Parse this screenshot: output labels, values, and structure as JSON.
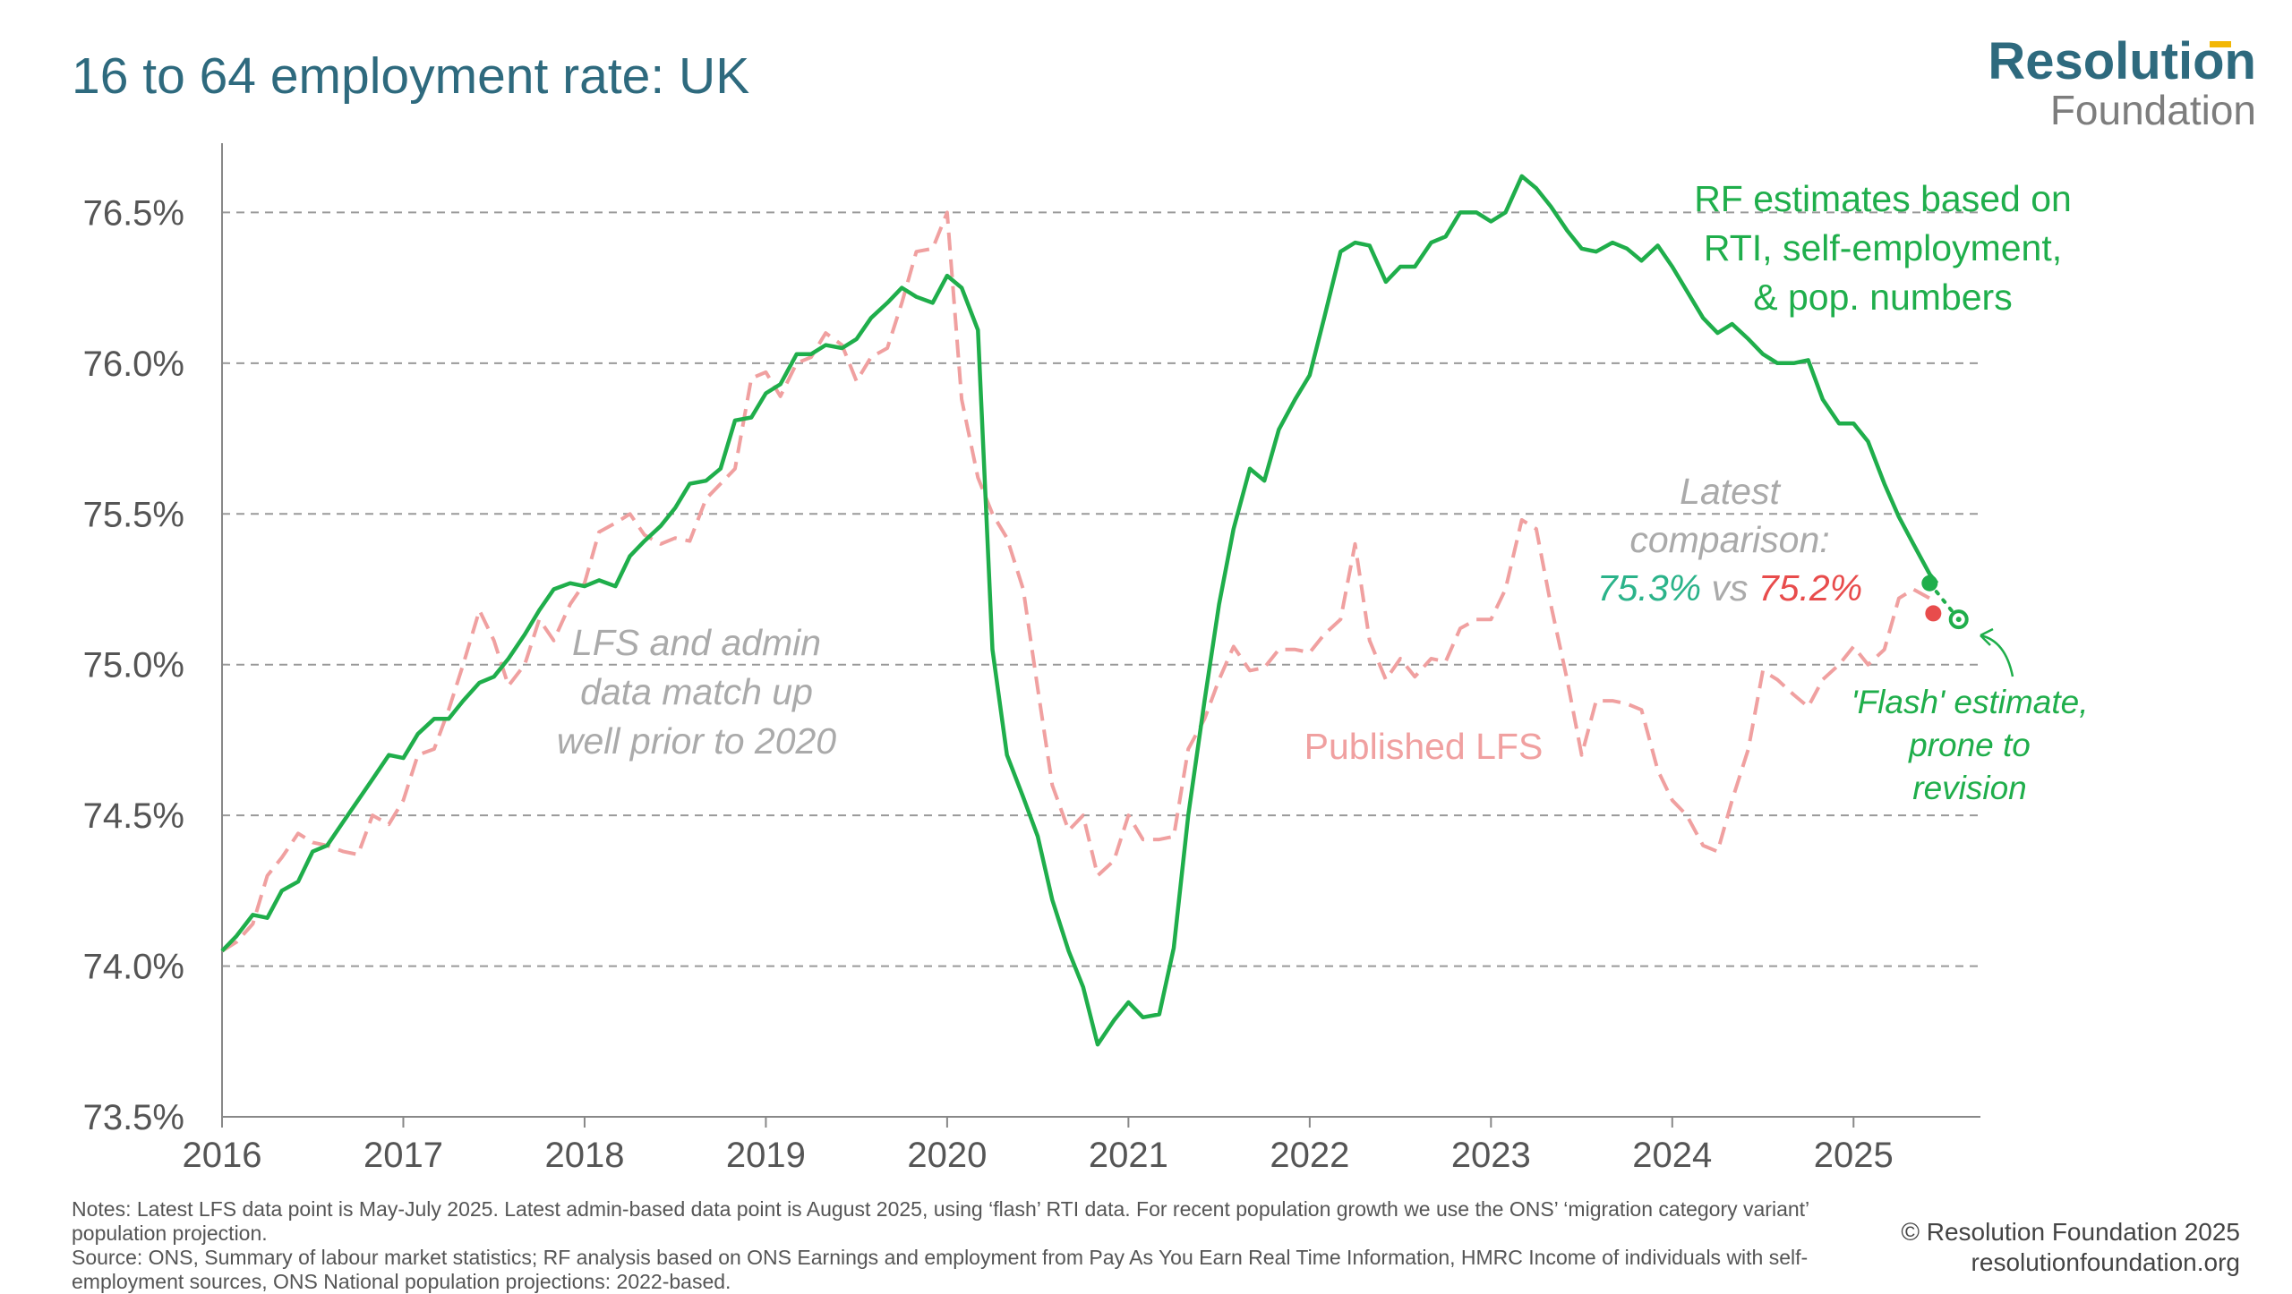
{
  "title": "16 to 64 employment rate: UK",
  "logo": {
    "line1": "Resolution",
    "line2": "Foundation"
  },
  "colors": {
    "green": "#1fae4b",
    "pink": "#f0a0a0",
    "red": "#e84c4c",
    "teal": "#2bb38a",
    "gray": "#aaaaaa",
    "title": "#2e6a7e"
  },
  "chart_data": {
    "type": "line",
    "ylim": [
      73.5,
      76.7
    ],
    "yticks": [
      73.5,
      74.0,
      74.5,
      75.0,
      75.5,
      76.0,
      76.5
    ],
    "ytick_labels": [
      "73.5%",
      "74.0%",
      "74.5%",
      "75.0%",
      "75.5%",
      "76.0%",
      "76.5%"
    ],
    "xlim": [
      2016,
      2025.7
    ],
    "xticks": [
      2016,
      2017,
      2018,
      2019,
      2020,
      2021,
      2022,
      2023,
      2024,
      2025
    ],
    "xtick_labels": [
      "2016",
      "2017",
      "2018",
      "2019",
      "2020",
      "2021",
      "2022",
      "2023",
      "2024",
      "2025"
    ],
    "grid": "horizontal dashed",
    "series": [
      {
        "name": "RF estimates based on RTI, self-employment, & pop. numbers",
        "style": "solid",
        "points": [
          [
            2016.0,
            74.05
          ],
          [
            2016.08,
            74.1
          ],
          [
            2016.17,
            74.17
          ],
          [
            2016.25,
            74.16
          ],
          [
            2016.33,
            74.25
          ],
          [
            2016.42,
            74.28
          ],
          [
            2016.5,
            74.38
          ],
          [
            2016.58,
            74.4
          ],
          [
            2016.67,
            74.48
          ],
          [
            2016.75,
            74.55
          ],
          [
            2016.83,
            74.62
          ],
          [
            2016.92,
            74.7
          ],
          [
            2017.0,
            74.69
          ],
          [
            2017.08,
            74.77
          ],
          [
            2017.17,
            74.82
          ],
          [
            2017.25,
            74.82
          ],
          [
            2017.33,
            74.88
          ],
          [
            2017.42,
            74.94
          ],
          [
            2017.5,
            74.96
          ],
          [
            2017.58,
            75.02
          ],
          [
            2017.67,
            75.1
          ],
          [
            2017.75,
            75.18
          ],
          [
            2017.83,
            75.25
          ],
          [
            2017.92,
            75.27
          ],
          [
            2018.0,
            75.26
          ],
          [
            2018.08,
            75.28
          ],
          [
            2018.17,
            75.26
          ],
          [
            2018.25,
            75.36
          ],
          [
            2018.33,
            75.41
          ],
          [
            2018.42,
            75.46
          ],
          [
            2018.5,
            75.52
          ],
          [
            2018.58,
            75.6
          ],
          [
            2018.67,
            75.61
          ],
          [
            2018.75,
            75.65
          ],
          [
            2018.83,
            75.81
          ],
          [
            2018.92,
            75.82
          ],
          [
            2019.0,
            75.9
          ],
          [
            2019.08,
            75.93
          ],
          [
            2019.17,
            76.03
          ],
          [
            2019.25,
            76.03
          ],
          [
            2019.33,
            76.06
          ],
          [
            2019.42,
            76.05
          ],
          [
            2019.5,
            76.08
          ],
          [
            2019.58,
            76.15
          ],
          [
            2019.67,
            76.2
          ],
          [
            2019.75,
            76.25
          ],
          [
            2019.83,
            76.22
          ],
          [
            2019.92,
            76.2
          ],
          [
            2020.0,
            76.29
          ],
          [
            2020.08,
            76.25
          ],
          [
            2020.17,
            76.11
          ],
          [
            2020.25,
            75.05
          ],
          [
            2020.33,
            74.7
          ],
          [
            2020.42,
            74.56
          ],
          [
            2020.5,
            74.43
          ],
          [
            2020.58,
            74.22
          ],
          [
            2020.67,
            74.05
          ],
          [
            2020.75,
            73.93
          ],
          [
            2020.83,
            73.74
          ],
          [
            2020.92,
            73.82
          ],
          [
            2021.0,
            73.88
          ],
          [
            2021.08,
            73.83
          ],
          [
            2021.17,
            73.84
          ],
          [
            2021.25,
            74.06
          ],
          [
            2021.33,
            74.5
          ],
          [
            2021.42,
            74.88
          ],
          [
            2021.5,
            75.2
          ],
          [
            2021.58,
            75.45
          ],
          [
            2021.67,
            75.65
          ],
          [
            2021.75,
            75.61
          ],
          [
            2021.83,
            75.78
          ],
          [
            2021.92,
            75.88
          ],
          [
            2022.0,
            75.96
          ],
          [
            2022.08,
            76.15
          ],
          [
            2022.17,
            76.37
          ],
          [
            2022.25,
            76.4
          ],
          [
            2022.33,
            76.39
          ],
          [
            2022.42,
            76.27
          ],
          [
            2022.5,
            76.32
          ],
          [
            2022.58,
            76.32
          ],
          [
            2022.67,
            76.4
          ],
          [
            2022.75,
            76.42
          ],
          [
            2022.83,
            76.5
          ],
          [
            2022.92,
            76.5
          ],
          [
            2023.0,
            76.47
          ],
          [
            2023.08,
            76.5
          ],
          [
            2023.17,
            76.62
          ],
          [
            2023.25,
            76.58
          ],
          [
            2023.33,
            76.52
          ],
          [
            2023.42,
            76.44
          ],
          [
            2023.5,
            76.38
          ],
          [
            2023.58,
            76.37
          ],
          [
            2023.67,
            76.4
          ],
          [
            2023.75,
            76.38
          ],
          [
            2023.83,
            76.34
          ],
          [
            2023.92,
            76.39
          ],
          [
            2024.0,
            76.32
          ],
          [
            2024.08,
            76.24
          ],
          [
            2024.17,
            76.15
          ],
          [
            2024.25,
            76.1
          ],
          [
            2024.33,
            76.13
          ],
          [
            2024.42,
            76.08
          ],
          [
            2024.5,
            76.03
          ],
          [
            2024.58,
            76.0
          ],
          [
            2024.67,
            76.0
          ],
          [
            2024.75,
            76.01
          ],
          [
            2024.83,
            75.88
          ],
          [
            2024.92,
            75.8
          ],
          [
            2025.0,
            75.8
          ],
          [
            2025.08,
            75.74
          ],
          [
            2025.17,
            75.6
          ],
          [
            2025.25,
            75.49
          ],
          [
            2025.33,
            75.4
          ],
          [
            2025.42,
            75.3
          ],
          [
            2025.46,
            75.27
          ]
        ]
      },
      {
        "name": "Published LFS",
        "style": "dashed",
        "points": [
          [
            2016.0,
            74.05
          ],
          [
            2016.08,
            74.08
          ],
          [
            2016.17,
            74.14
          ],
          [
            2016.25,
            74.3
          ],
          [
            2016.33,
            74.36
          ],
          [
            2016.42,
            74.44
          ],
          [
            2016.5,
            74.41
          ],
          [
            2016.58,
            74.4
          ],
          [
            2016.67,
            74.38
          ],
          [
            2016.75,
            74.37
          ],
          [
            2016.83,
            74.5
          ],
          [
            2016.92,
            74.47
          ],
          [
            2017.0,
            74.55
          ],
          [
            2017.08,
            74.7
          ],
          [
            2017.17,
            74.72
          ],
          [
            2017.25,
            74.85
          ],
          [
            2017.33,
            75.0
          ],
          [
            2017.42,
            75.18
          ],
          [
            2017.5,
            75.08
          ],
          [
            2017.58,
            74.93
          ],
          [
            2017.67,
            75.0
          ],
          [
            2017.75,
            75.15
          ],
          [
            2017.83,
            75.08
          ],
          [
            2017.92,
            75.2
          ],
          [
            2018.0,
            75.27
          ],
          [
            2018.08,
            75.44
          ],
          [
            2018.17,
            75.47
          ],
          [
            2018.25,
            75.5
          ],
          [
            2018.33,
            75.43
          ],
          [
            2018.42,
            75.4
          ],
          [
            2018.5,
            75.42
          ],
          [
            2018.58,
            75.41
          ],
          [
            2018.67,
            75.55
          ],
          [
            2018.75,
            75.6
          ],
          [
            2018.83,
            75.65
          ],
          [
            2018.92,
            75.95
          ],
          [
            2019.0,
            75.97
          ],
          [
            2019.08,
            75.89
          ],
          [
            2019.17,
            76.0
          ],
          [
            2019.25,
            76.02
          ],
          [
            2019.33,
            76.1
          ],
          [
            2019.42,
            76.06
          ],
          [
            2019.5,
            75.94
          ],
          [
            2019.58,
            76.02
          ],
          [
            2019.67,
            76.05
          ],
          [
            2019.75,
            76.2
          ],
          [
            2019.83,
            76.37
          ],
          [
            2019.92,
            76.38
          ],
          [
            2020.0,
            76.5
          ],
          [
            2020.08,
            75.88
          ],
          [
            2020.17,
            75.62
          ],
          [
            2020.25,
            75.5
          ],
          [
            2020.33,
            75.42
          ],
          [
            2020.42,
            75.25
          ],
          [
            2020.5,
            74.92
          ],
          [
            2020.58,
            74.6
          ],
          [
            2020.67,
            74.45
          ],
          [
            2020.75,
            74.5
          ],
          [
            2020.83,
            74.3
          ],
          [
            2020.92,
            74.35
          ],
          [
            2021.0,
            74.5
          ],
          [
            2021.08,
            74.42
          ],
          [
            2021.17,
            74.42
          ],
          [
            2021.25,
            74.43
          ],
          [
            2021.33,
            74.72
          ],
          [
            2021.42,
            74.82
          ],
          [
            2021.5,
            74.95
          ],
          [
            2021.58,
            75.06
          ],
          [
            2021.67,
            74.98
          ],
          [
            2021.75,
            74.99
          ],
          [
            2021.83,
            75.05
          ],
          [
            2021.92,
            75.05
          ],
          [
            2022.0,
            75.04
          ],
          [
            2022.08,
            75.1
          ],
          [
            2022.17,
            75.15
          ],
          [
            2022.25,
            75.4
          ],
          [
            2022.33,
            75.08
          ],
          [
            2022.42,
            74.95
          ],
          [
            2022.5,
            75.02
          ],
          [
            2022.58,
            74.96
          ],
          [
            2022.67,
            75.02
          ],
          [
            2022.75,
            75.01
          ],
          [
            2022.83,
            75.12
          ],
          [
            2022.92,
            75.15
          ],
          [
            2023.0,
            75.15
          ],
          [
            2023.08,
            75.25
          ],
          [
            2023.17,
            75.48
          ],
          [
            2023.25,
            75.45
          ],
          [
            2023.33,
            75.2
          ],
          [
            2023.42,
            74.95
          ],
          [
            2023.5,
            74.7
          ],
          [
            2023.58,
            74.88
          ],
          [
            2023.67,
            74.88
          ],
          [
            2023.75,
            74.87
          ],
          [
            2023.83,
            74.85
          ],
          [
            2023.92,
            74.65
          ],
          [
            2024.0,
            74.55
          ],
          [
            2024.08,
            74.5
          ],
          [
            2024.17,
            74.4
          ],
          [
            2024.25,
            74.38
          ],
          [
            2024.33,
            74.55
          ],
          [
            2024.42,
            74.72
          ],
          [
            2024.5,
            74.98
          ],
          [
            2024.58,
            74.95
          ],
          [
            2024.67,
            74.9
          ],
          [
            2024.75,
            74.86
          ],
          [
            2024.83,
            74.95
          ],
          [
            2024.92,
            75.0
          ],
          [
            2025.0,
            75.06
          ],
          [
            2025.08,
            75.0
          ],
          [
            2025.17,
            75.05
          ],
          [
            2025.25,
            75.22
          ],
          [
            2025.33,
            75.25
          ],
          [
            2025.42,
            75.22
          ],
          [
            2025.46,
            75.17
          ]
        ]
      }
    ],
    "markers": [
      {
        "name": "latest-rf-point",
        "x": 2025.42,
        "y": 75.27,
        "color": "#1fae4b",
        "style": "filled"
      },
      {
        "name": "latest-lfs-point",
        "x": 2025.44,
        "y": 75.17,
        "color": "#e84c4c",
        "style": "filled"
      },
      {
        "name": "flash-estimate-point",
        "x": 2025.58,
        "y": 75.15,
        "color": "#1fae4b",
        "style": "hollow"
      }
    ],
    "annotations": {
      "rf_label": [
        "RF estimates based on",
        "RTI, self-employment,",
        "& pop. numbers"
      ],
      "lfs_label": "Published LFS",
      "match_label": [
        "LFS and admin",
        "data match up",
        "well prior to 2020"
      ],
      "latest_label_1": "Latest",
      "latest_label_2": "comparison:",
      "latest_rf_value": "75.3%",
      "latest_vs": " vs ",
      "latest_lfs_value": "75.2%",
      "flash_label": [
        "'Flash' estimate,",
        "prone to",
        "revision"
      ]
    }
  },
  "notes": {
    "line1": "Notes: Latest LFS data point is May-July 2025. Latest admin-based data point is August 2025, using ‘flash’ RTI data. For recent population growth we use the ONS’ ‘migration category variant’ population projection.",
    "line2": "Source: ONS, Summary of labour market statistics; RF analysis based on ONS Earnings and employment from Pay As You Earn Real Time Information, HMRC Income of individuals with self-employment sources, ONS National population projections: 2022-based."
  },
  "credit": {
    "line1": "© Resolution Foundation 2025",
    "line2": "resolutionfoundation.org"
  }
}
